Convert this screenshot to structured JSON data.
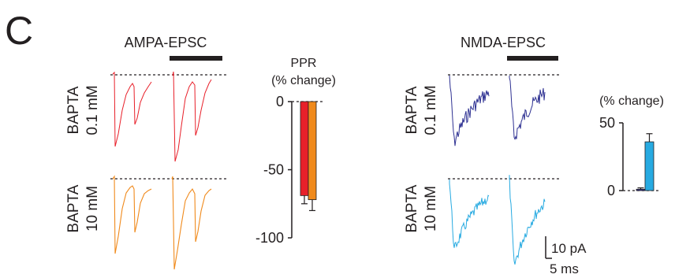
{
  "panel_letter": "C",
  "ampa": {
    "title": "AMPA-EPSC",
    "rows": [
      {
        "label_line1": "BAPTA",
        "label_line2": "0.1 mM",
        "trace_color": "#e8202a"
      },
      {
        "label_line1": "BAPTA",
        "label_line2": "10 mM",
        "trace_color": "#f08a1c"
      }
    ]
  },
  "nmda": {
    "title": "NMDA-EPSC",
    "rows": [
      {
        "label_line1": "BAPTA",
        "label_line2": "0.1 mM",
        "trace_color": "#2e3192"
      },
      {
        "label_line1": "BAPTA",
        "label_line2": "10 mM",
        "trace_color": "#27aae1"
      }
    ]
  },
  "scale_bar": {
    "current": "10 pA",
    "time": "5 ms"
  },
  "chart_data": [
    {
      "type": "bar",
      "title_line1": "PPR",
      "title_line2": "(% change)",
      "categories": [
        "BAPTA 0.1 mM",
        "BAPTA 10 mM"
      ],
      "values": [
        -69,
        -72
      ],
      "errors": [
        6,
        8
      ],
      "colors": [
        "#e8202a",
        "#f08a1c"
      ],
      "ylim": [
        -100,
        0
      ],
      "yticks": [
        0,
        -50,
        -100
      ],
      "ytick_labels": [
        "0",
        "-50",
        "-100"
      ]
    },
    {
      "type": "bar",
      "title_line1": "(% change)",
      "categories": [
        "BAPTA 0.1 mM",
        "BAPTA 10 mM"
      ],
      "values": [
        1,
        36
      ],
      "errors": [
        1,
        6
      ],
      "colors": [
        "#2e3192",
        "#27aae1"
      ],
      "ylim": [
        0,
        50
      ],
      "yticks": [
        0,
        50
      ],
      "ytick_labels": [
        "0",
        "50"
      ]
    }
  ]
}
